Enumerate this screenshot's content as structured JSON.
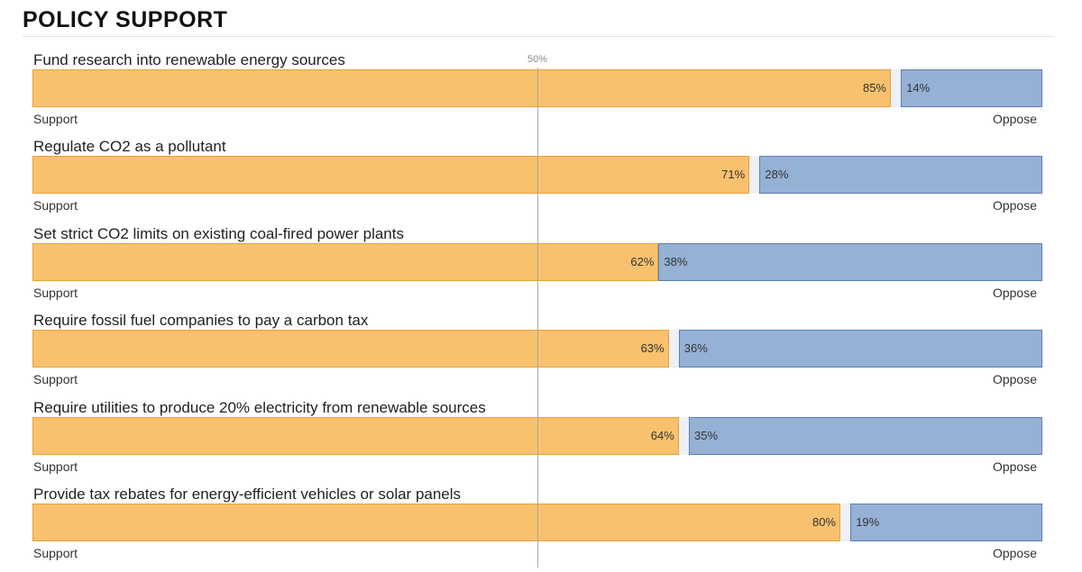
{
  "title": "POLICY SUPPORT",
  "midpoint_label": "50%",
  "colors": {
    "support": "#f9c16e",
    "oppose": "#95b1d5",
    "gap": "#eef0f5"
  },
  "chart_data": {
    "type": "bar",
    "orientation": "horizontal-stacked",
    "title": "POLICY SUPPORT",
    "xlim": [
      0,
      100
    ],
    "reference_line": 50,
    "categories": [
      "Fund research into renewable energy sources",
      "Regulate CO2 as a pollutant",
      "Set strict CO2 limits on existing coal-fired power plants",
      "Require fossil fuel companies to pay a carbon tax",
      "Require utilities to produce 20% electricity from renewable sources",
      "Provide tax rebates for energy-efficient vehicles or solar panels"
    ],
    "series": [
      {
        "name": "Support",
        "values": [
          85,
          71,
          62,
          63,
          64,
          80
        ]
      },
      {
        "name": "Oppose",
        "values": [
          14,
          28,
          38,
          36,
          35,
          19
        ]
      }
    ],
    "support_labels": [
      "85%",
      "71%",
      "62%",
      "63%",
      "64%",
      "80%"
    ],
    "oppose_labels": [
      "14%",
      "28%",
      "38%",
      "36%",
      "35%",
      "19%"
    ],
    "left_end_label": "Support",
    "right_end_label": "Oppose"
  }
}
